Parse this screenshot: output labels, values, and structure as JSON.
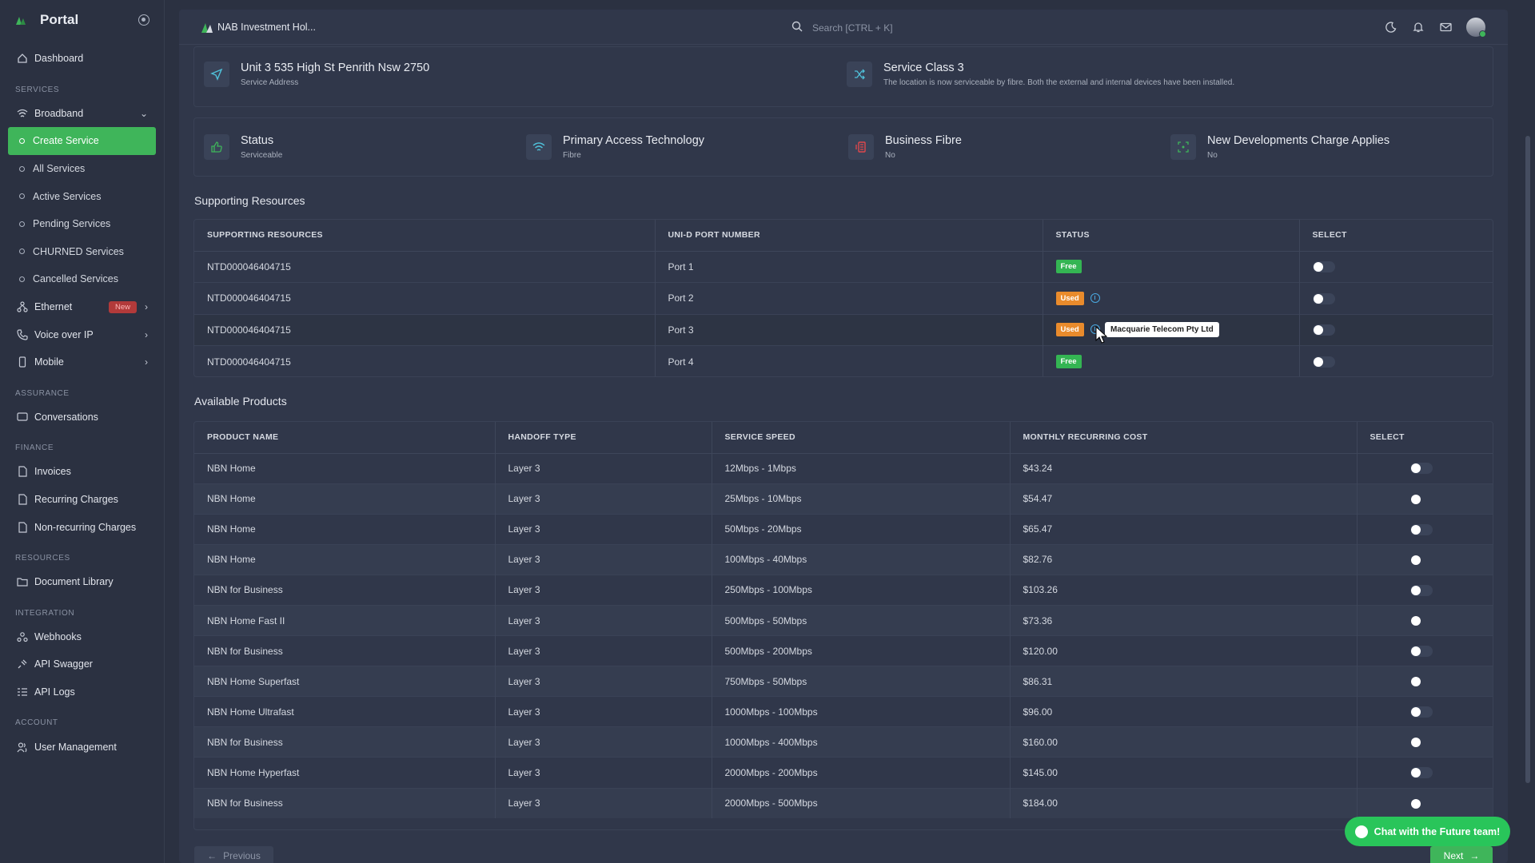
{
  "sidebar": {
    "brand": "Portal",
    "dashboard": "Dashboard",
    "section_services": "SERVICES",
    "broadband": "Broadband",
    "broadband_items": [
      "Create Service",
      "All Services",
      "Active Services",
      "Pending Services",
      "CHURNED Services",
      "Cancelled Services"
    ],
    "ethernet": "Ethernet",
    "ethernet_badge": "New",
    "voip": "Voice over IP",
    "mobile": "Mobile",
    "section_assurance": "ASSURANCE",
    "conversations": "Conversations",
    "section_finance": "FINANCE",
    "invoices": "Invoices",
    "recurring": "Recurring Charges",
    "nonrecurring": "Non-recurring Charges",
    "section_resources": "RESOURCES",
    "document_library": "Document Library",
    "section_integration": "INTEGRATION",
    "webhooks": "Webhooks",
    "api_swagger": "API Swagger",
    "api_logs": "API Logs",
    "section_account": "ACCOUNT",
    "user_management": "User Management"
  },
  "topbar": {
    "org_name": "NAB Investment Hol...",
    "search_placeholder": "Search [CTRL + K]"
  },
  "address": {
    "title": "Unit 3 535 High St Penrith Nsw 2750",
    "subtitle": "Service Address"
  },
  "service_class": {
    "title": "Service Class 3",
    "subtitle": "The location is now serviceable by fibre. Both the external and internal devices have been installed."
  },
  "status_cards": [
    {
      "title": "Status",
      "value": "Serviceable"
    },
    {
      "title": "Primary Access Technology",
      "value": "Fibre"
    },
    {
      "title": "Business Fibre",
      "value": "No"
    },
    {
      "title": "New Developments Charge Applies",
      "value": "No"
    }
  ],
  "supporting": {
    "heading": "Supporting Resources",
    "columns": [
      "SUPPORTING RESOURCES",
      "UNI-D PORT NUMBER",
      "STATUS",
      "SELECT"
    ],
    "rows": [
      {
        "resource": "NTD000046404715",
        "port": "Port 1",
        "status": "Free"
      },
      {
        "resource": "NTD000046404715",
        "port": "Port 2",
        "status": "Used"
      },
      {
        "resource": "NTD000046404715",
        "port": "Port 3",
        "status": "Used"
      },
      {
        "resource": "NTD000046404715",
        "port": "Port 4",
        "status": "Free"
      }
    ],
    "tooltip": "Macquarie Telecom Pty Ltd"
  },
  "products": {
    "heading": "Available Products",
    "columns": [
      "PRODUCT NAME",
      "HANDOFF TYPE",
      "SERVICE SPEED",
      "MONTHLY RECURRING COST",
      "SELECT"
    ],
    "rows": [
      {
        "name": "NBN Home",
        "handoff": "Layer 3",
        "speed": "12Mbps - 1Mbps",
        "cost": "$43.24"
      },
      {
        "name": "NBN Home",
        "handoff": "Layer 3",
        "speed": "25Mbps - 10Mbps",
        "cost": "$54.47"
      },
      {
        "name": "NBN Home",
        "handoff": "Layer 3",
        "speed": "50Mbps - 20Mbps",
        "cost": "$65.47"
      },
      {
        "name": "NBN Home",
        "handoff": "Layer 3",
        "speed": "100Mbps - 40Mbps",
        "cost": "$82.76"
      },
      {
        "name": "NBN for Business",
        "handoff": "Layer 3",
        "speed": "250Mbps - 100Mbps",
        "cost": "$103.26"
      },
      {
        "name": "NBN Home Fast II",
        "handoff": "Layer 3",
        "speed": "500Mbps - 50Mbps",
        "cost": "$73.36"
      },
      {
        "name": "NBN for Business",
        "handoff": "Layer 3",
        "speed": "500Mbps - 200Mbps",
        "cost": "$120.00"
      },
      {
        "name": "NBN Home Superfast",
        "handoff": "Layer 3",
        "speed": "750Mbps - 50Mbps",
        "cost": "$86.31"
      },
      {
        "name": "NBN Home Ultrafast",
        "handoff": "Layer 3",
        "speed": "1000Mbps - 100Mbps",
        "cost": "$96.00"
      },
      {
        "name": "NBN for Business",
        "handoff": "Layer 3",
        "speed": "1000Mbps - 400Mbps",
        "cost": "$160.00"
      },
      {
        "name": "NBN Home Hyperfast",
        "handoff": "Layer 3",
        "speed": "2000Mbps - 200Mbps",
        "cost": "$145.00"
      },
      {
        "name": "NBN for Business",
        "handoff": "Layer 3",
        "speed": "2000Mbps - 500Mbps",
        "cost": "$184.00"
      }
    ]
  },
  "pagination": {
    "previous": "Previous",
    "next": "Next"
  },
  "chat": {
    "label": "Chat with the Future team!"
  },
  "colors": {
    "accent": "#3fb55a",
    "free": "#34b553",
    "used": "#e98b2c",
    "bg": "#2b3141"
  }
}
